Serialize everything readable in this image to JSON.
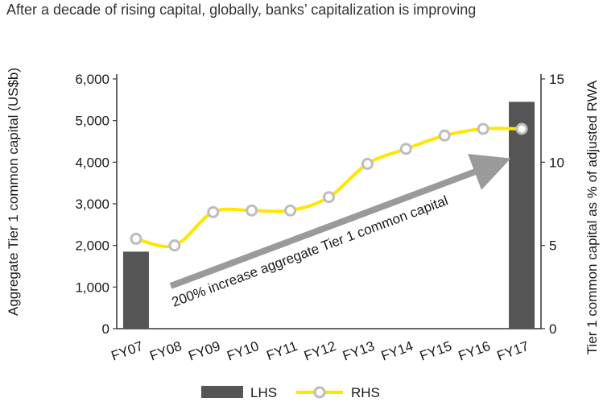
{
  "title": "After a decade of rising capital, globally, banks’ capitalization is improving",
  "chart_data": {
    "type": "bar",
    "categories": [
      "FY07",
      "FY08",
      "FY09",
      "FY10",
      "FY11",
      "FY12",
      "FY13",
      "FY14",
      "FY15",
      "FY16",
      "FY17"
    ],
    "series": [
      {
        "name": "LHS",
        "type": "bar",
        "axis": "left",
        "values": [
          1850,
          null,
          null,
          null,
          null,
          null,
          null,
          null,
          null,
          null,
          5450
        ],
        "color": "#555555"
      },
      {
        "name": "RHS",
        "type": "line",
        "axis": "right",
        "values": [
          5.4,
          5.0,
          7.0,
          7.1,
          7.1,
          7.9,
          9.9,
          10.8,
          11.6,
          12.0,
          12.0
        ],
        "color": "#ffe600",
        "marker_color": "#bdbdbd"
      }
    ],
    "ylabel_left": "Aggregate Tier 1 common capital (US$b)",
    "ylabel_right": "Tier 1 common capital as % of adjusted RWA",
    "ylim_left": [
      0,
      6000
    ],
    "ylim_right": [
      0,
      15
    ],
    "yticks_left": [
      "0",
      "1,000",
      "2,000",
      "3,000",
      "4,000",
      "5,000",
      "6,000"
    ],
    "yticks_right": [
      "0",
      "5",
      "10",
      "15"
    ],
    "annotation": "200% increase aggregate Tier 1 common capital",
    "legend_position": "bottom",
    "grid": false
  }
}
